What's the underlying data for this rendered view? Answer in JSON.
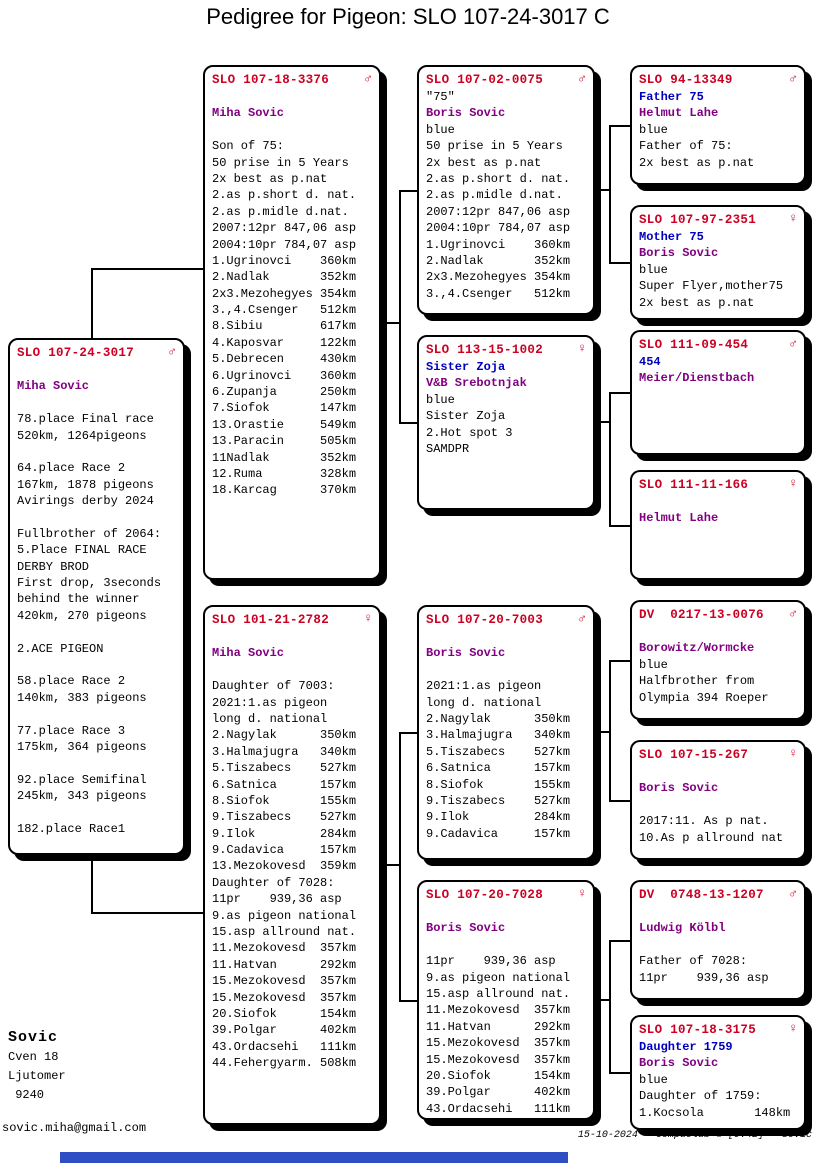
{
  "title": "Pedigree for Pigeon: SLO 107-24-3017 C",
  "colors": {
    "ring_red": "#cc0022",
    "name_blue": "#0000bb",
    "breeder_purple": "#800080",
    "text_black": "#000000",
    "bottom_bar_blue": "#2e4ec4"
  },
  "boxes": [
    {
      "id": "subject",
      "ring": "SLO 107-24-3017",
      "sex": "♂",
      "lines": [
        {
          "t": ""
        },
        {
          "t": "Miha Sovic",
          "c": "purple"
        },
        {
          "t": ""
        },
        {
          "t": "78.place Final race"
        },
        {
          "t": "520km, 1264pigeons"
        },
        {
          "t": ""
        },
        {
          "t": "64.place Race 2"
        },
        {
          "t": "167km, 1878 pigeons"
        },
        {
          "t": "Avirings derby 2024"
        },
        {
          "t": ""
        },
        {
          "t": "Fullbrother of 2064:"
        },
        {
          "t": "5.Place FINAL RACE"
        },
        {
          "t": "DERBY BROD"
        },
        {
          "t": "First drop, 3seconds"
        },
        {
          "t": "behind the winner"
        },
        {
          "t": "420km, 270 pigeons"
        },
        {
          "t": ""
        },
        {
          "t": "2.ACE PIGEON"
        },
        {
          "t": ""
        },
        {
          "t": "58.place Race 2"
        },
        {
          "t": "140km, 383 pigeons"
        },
        {
          "t": ""
        },
        {
          "t": "77.place Race 3"
        },
        {
          "t": "175km, 364 pigeons"
        },
        {
          "t": ""
        },
        {
          "t": "92.place Semifinal"
        },
        {
          "t": "245km, 343 pigeons"
        },
        {
          "t": ""
        },
        {
          "t": "182.place Race1"
        }
      ]
    },
    {
      "id": "sire",
      "ring": "SLO 107-18-3376",
      "sex": "♂",
      "lines": [
        {
          "t": ""
        },
        {
          "t": "Miha Sovic",
          "c": "purple"
        },
        {
          "t": ""
        },
        {
          "t": "Son of 75:"
        },
        {
          "t": "50 prise in 5 Years"
        },
        {
          "t": "2x best as p.nat"
        },
        {
          "t": "2.as p.short d. nat."
        },
        {
          "t": "2.as p.midle d.nat."
        },
        {
          "t": "2007:12pr 847,06 asp"
        },
        {
          "t": "2004:10pr 784,07 asp"
        },
        {
          "t": "1.Ugrinovci    360km"
        },
        {
          "t": "2.Nadlak       352km"
        },
        {
          "t": "2x3.Mezohegyes 354km"
        },
        {
          "t": "3.,4.Csenger   512km"
        },
        {
          "t": "8.Sibiu        617km"
        },
        {
          "t": "4.Kaposvar     122km"
        },
        {
          "t": "5.Debrecen     430km"
        },
        {
          "t": "6.Ugrinovci    360km"
        },
        {
          "t": "6.Zupanja      250km"
        },
        {
          "t": "7.Siofok       147km"
        },
        {
          "t": "13.Orastie     549km"
        },
        {
          "t": "13.Paracin     505km"
        },
        {
          "t": "11Nadlak       352km"
        },
        {
          "t": "12.Ruma        328km"
        },
        {
          "t": "18.Karcag      370km"
        }
      ]
    },
    {
      "id": "dam",
      "ring": "SLO 101-21-2782",
      "sex": "♀",
      "lines": [
        {
          "t": ""
        },
        {
          "t": "Miha Sovic",
          "c": "purple"
        },
        {
          "t": ""
        },
        {
          "t": "Daughter of 7003:"
        },
        {
          "t": "2021:1.as pigeon"
        },
        {
          "t": "long d. national"
        },
        {
          "t": "2.Nagylak      350km"
        },
        {
          "t": "3.Halmajugra   340km"
        },
        {
          "t": "5.Tiszabecs    527km"
        },
        {
          "t": "6.Satnica      157km"
        },
        {
          "t": "8.Siofok       155km"
        },
        {
          "t": "9.Tiszabecs    527km"
        },
        {
          "t": "9.Ilok         284km"
        },
        {
          "t": "9.Cadavica     157km"
        },
        {
          "t": "13.Mezokovesd  359km"
        },
        {
          "t": "Daughter of 7028:"
        },
        {
          "t": "11pr    939,36 asp"
        },
        {
          "t": "9.as pigeon national"
        },
        {
          "t": "15.asp allround nat."
        },
        {
          "t": "11.Mezokovesd  357km"
        },
        {
          "t": "11.Hatvan      292km"
        },
        {
          "t": "15.Mezokovesd  357km"
        },
        {
          "t": "15.Mezokovesd  357km"
        },
        {
          "t": "20.Siofok      154km"
        },
        {
          "t": "39.Polgar      402km"
        },
        {
          "t": "43.Ordacsehi   111km"
        },
        {
          "t": "44.Fehergyarm. 508km"
        }
      ]
    },
    {
      "id": "sire_sire",
      "ring": "SLO 107-02-0075",
      "sex": "♂",
      "lines": [
        {
          "t": "\"75\""
        },
        {
          "t": "Boris Sovic",
          "c": "purple"
        },
        {
          "t": "blue"
        },
        {
          "t": "50 prise in 5 Years"
        },
        {
          "t": "2x best as p.nat"
        },
        {
          "t": "2.as p.short d. nat."
        },
        {
          "t": "2.as p.midle d.nat."
        },
        {
          "t": "2007:12pr 847,06 asp"
        },
        {
          "t": "2004:10pr 784,07 asp"
        },
        {
          "t": "1.Ugrinovci    360km"
        },
        {
          "t": "2.Nadlak       352km"
        },
        {
          "t": "2x3.Mezohegyes 354km"
        },
        {
          "t": "3.,4.Csenger   512km"
        }
      ]
    },
    {
      "id": "sire_dam",
      "ring": "SLO 113-15-1002",
      "sex": "♀",
      "lines": [
        {
          "t": "Sister Zoja",
          "c": "blue"
        },
        {
          "t": "V&B Srebotnjak",
          "c": "purple"
        },
        {
          "t": "blue"
        },
        {
          "t": "Sister Zoja"
        },
        {
          "t": "2.Hot spot 3"
        },
        {
          "t": "SAMDPR"
        }
      ]
    },
    {
      "id": "dam_sire",
      "ring": "SLO 107-20-7003",
      "sex": "♂",
      "lines": [
        {
          "t": ""
        },
        {
          "t": "Boris Sovic",
          "c": "purple"
        },
        {
          "t": ""
        },
        {
          "t": "2021:1.as pigeon"
        },
        {
          "t": "long d. national"
        },
        {
          "t": "2.Nagylak      350km"
        },
        {
          "t": "3.Halmajugra   340km"
        },
        {
          "t": "5.Tiszabecs    527km"
        },
        {
          "t": "6.Satnica      157km"
        },
        {
          "t": "8.Siofok       155km"
        },
        {
          "t": "9.Tiszabecs    527km"
        },
        {
          "t": "9.Ilok         284km"
        },
        {
          "t": "9.Cadavica     157km"
        }
      ]
    },
    {
      "id": "dam_dam",
      "ring": "SLO 107-20-7028",
      "sex": "♀",
      "lines": [
        {
          "t": ""
        },
        {
          "t": "Boris Sovic",
          "c": "purple"
        },
        {
          "t": ""
        },
        {
          "t": "11pr    939,36 asp"
        },
        {
          "t": "9.as pigeon national"
        },
        {
          "t": "15.asp allround nat."
        },
        {
          "t": "11.Mezokovesd  357km"
        },
        {
          "t": "11.Hatvan      292km"
        },
        {
          "t": "15.Mezokovesd  357km"
        },
        {
          "t": "15.Mezokovesd  357km"
        },
        {
          "t": "20.Siofok      154km"
        },
        {
          "t": "39.Polgar      402km"
        },
        {
          "t": "43.Ordacsehi   111km"
        }
      ]
    },
    {
      "id": "sire_sire_sire",
      "ring": "SLO 94-13349",
      "sex": "♂",
      "lines": [
        {
          "t": "Father 75",
          "c": "blue"
        },
        {
          "t": "Helmut Lahe",
          "c": "purple"
        },
        {
          "t": "blue"
        },
        {
          "t": "Father of 75:"
        },
        {
          "t": "2x best as p.nat"
        }
      ]
    },
    {
      "id": "sire_sire_dam",
      "ring": "SLO 107-97-2351",
      "sex": "♀",
      "lines": [
        {
          "t": "Mother 75",
          "c": "blue"
        },
        {
          "t": "Boris Sovic",
          "c": "purple"
        },
        {
          "t": "blue"
        },
        {
          "t": "Super Flyer,mother75"
        },
        {
          "t": "2x best as p.nat"
        }
      ]
    },
    {
      "id": "sire_dam_sire",
      "ring": "SLO 111-09-454",
      "sex": "♂",
      "lines": [
        {
          "t": "454",
          "c": "blue"
        },
        {
          "t": "Meier/Dienstbach",
          "c": "purple"
        }
      ]
    },
    {
      "id": "sire_dam_dam",
      "ring": "SLO 111-11-166",
      "sex": "♀",
      "lines": [
        {
          "t": ""
        },
        {
          "t": "Helmut Lahe",
          "c": "purple"
        }
      ]
    },
    {
      "id": "dam_sire_sire",
      "ring": "DV  0217-13-0076",
      "sex": "♂",
      "lines": [
        {
          "t": ""
        },
        {
          "t": "Borowitz/Wormcke",
          "c": "purple"
        },
        {
          "t": "blue"
        },
        {
          "t": "Halfbrother from"
        },
        {
          "t": "Olympia 394 Roeper"
        }
      ]
    },
    {
      "id": "dam_sire_dam",
      "ring": "SLO 107-15-267",
      "sex": "♀",
      "lines": [
        {
          "t": ""
        },
        {
          "t": "Boris Sovic",
          "c": "purple"
        },
        {
          "t": ""
        },
        {
          "t": "2017:11. As p nat."
        },
        {
          "t": "10.As p allround nat"
        }
      ]
    },
    {
      "id": "dam_dam_sire",
      "ring": "DV  0748-13-1207",
      "sex": "♂",
      "lines": [
        {
          "t": ""
        },
        {
          "t": "Ludwig Kölbl",
          "c": "purple"
        },
        {
          "t": ""
        },
        {
          "t": "Father of 7028:"
        },
        {
          "t": "11pr    939,36 asp"
        }
      ]
    },
    {
      "id": "dam_dam_dam",
      "ring": "SLO 107-18-3175",
      "sex": "♀",
      "lines": [
        {
          "t": "Daughter 1759",
          "c": "blue"
        },
        {
          "t": "Boris Sovic",
          "c": "purple"
        },
        {
          "t": "blue"
        },
        {
          "t": "Daughter of 1759:"
        },
        {
          "t": "1.Kocsola       148km"
        }
      ]
    }
  ],
  "owner": {
    "name": "Sovic",
    "lines": [
      "Cven 18",
      "Ljutomer",
      " 9240"
    ],
    "email": "sovic.miha@gmail.com"
  },
  "footer": {
    "date": "15-10-2024",
    "program": "Compuclub © [9.42]",
    "name": "Sovic"
  }
}
